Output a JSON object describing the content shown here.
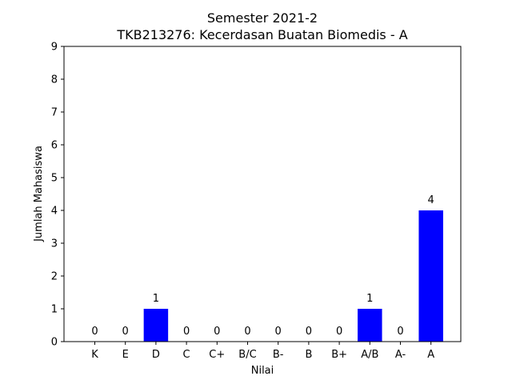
{
  "chart_data": {
    "type": "bar",
    "title": "Semester 2021-2",
    "subtitle": "TKB213276: Kecerdasan Buatan Biomedis - A",
    "xlabel": "Nilai",
    "ylabel": "Jumlah Mahasiswa",
    "categories": [
      "K",
      "E",
      "D",
      "C",
      "C+",
      "B/C",
      "B-",
      "B",
      "B+",
      "A/B",
      "A-",
      "A"
    ],
    "values": [
      0,
      0,
      1,
      0,
      0,
      0,
      0,
      0,
      0,
      1,
      0,
      4
    ],
    "ylim": [
      0,
      9
    ],
    "yticks": [
      0,
      1,
      2,
      3,
      4,
      5,
      6,
      7,
      8,
      9
    ],
    "bar_color": "#0000ff",
    "grid": false,
    "legend": "none"
  }
}
